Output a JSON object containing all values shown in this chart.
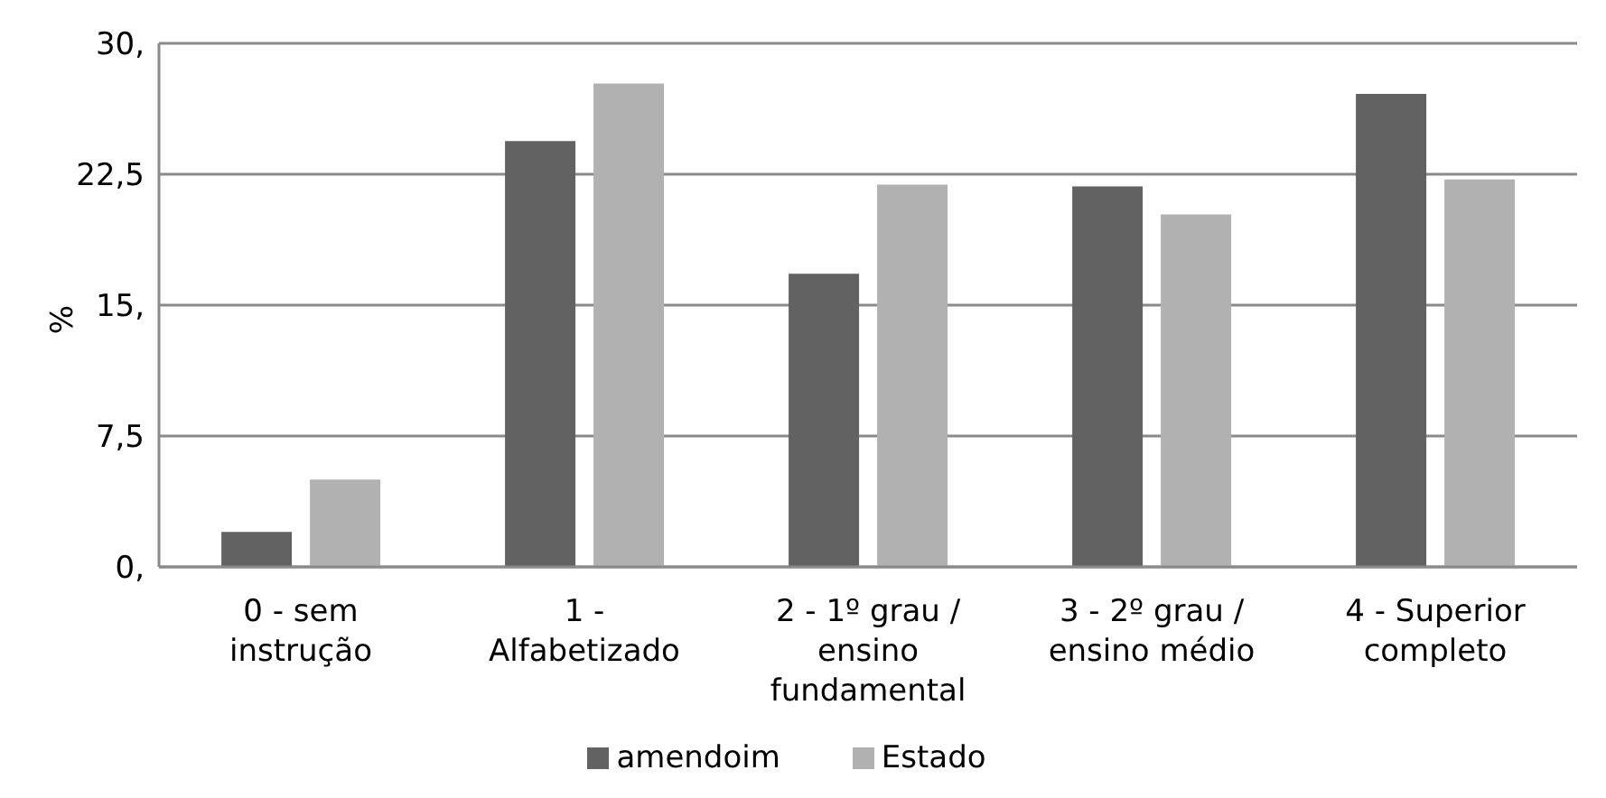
{
  "chart_data": {
    "type": "bar",
    "ylabel": "%",
    "categories": [
      "0 - sem instrução",
      "1 - Alfabetizado",
      "2 - 1º grau / ensino fundamental",
      "3 - 2º grau / ensino médio",
      "4 - Superior completo"
    ],
    "series": [
      {
        "name": "amendoim",
        "color": "#626262",
        "values": [
          2.0,
          24.4,
          16.8,
          21.8,
          27.1
        ]
      },
      {
        "name": "Estado",
        "color": "#b1b1b1",
        "values": [
          5.0,
          27.7,
          21.9,
          20.2,
          22.2
        ]
      }
    ],
    "ylim": [
      0,
      30
    ],
    "yticks": [
      {
        "value": 0,
        "label": "0,"
      },
      {
        "value": 7.5,
        "label": "7,5"
      },
      {
        "value": 15,
        "label": "15,"
      },
      {
        "value": 22.5,
        "label": "22,5"
      },
      {
        "value": 30,
        "label": "30,"
      }
    ],
    "grid": "y",
    "legend": "bottom"
  }
}
